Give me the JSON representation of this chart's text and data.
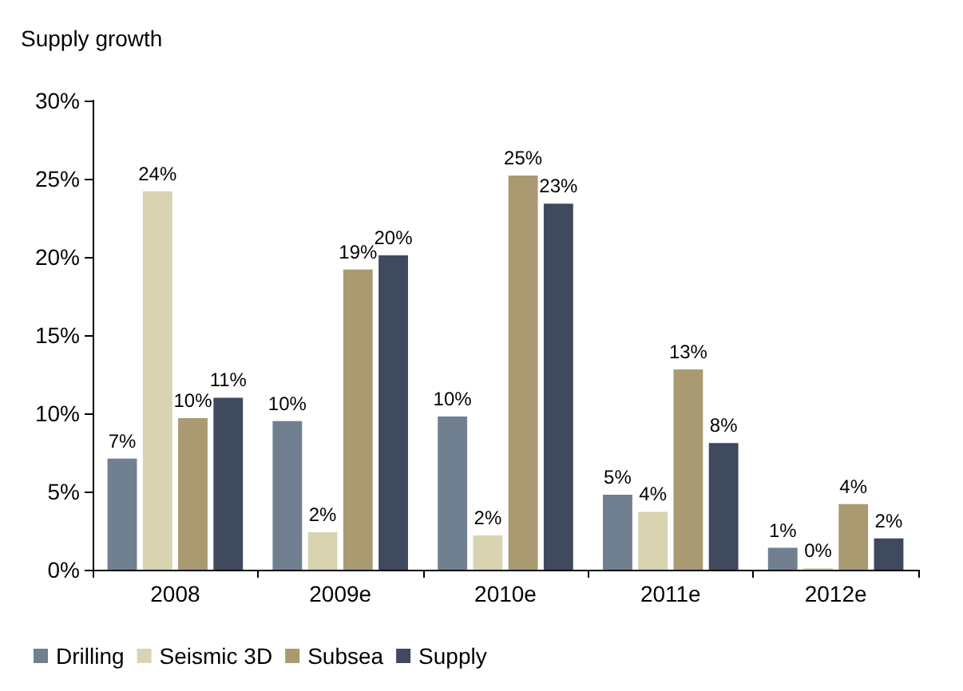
{
  "chart_data": {
    "type": "bar",
    "title": "Supply growth",
    "categories": [
      "2008",
      "2009e",
      "2010e",
      "2011e",
      "2012e"
    ],
    "series": [
      {
        "name": "Drilling",
        "color": "#718090",
        "values": [
          7.1,
          9.5,
          9.8,
          4.8,
          1.4
        ],
        "value_labels": [
          "7%",
          "10%",
          "10%",
          "5%",
          "1%"
        ]
      },
      {
        "name": "Seismic 3D",
        "color": "#d8d3b0",
        "values": [
          24.2,
          2.4,
          2.2,
          3.7,
          0
        ],
        "value_labels": [
          "24%",
          "2%",
          "2%",
          "4%",
          "0%"
        ]
      },
      {
        "name": "Subsea",
        "color": "#a99a72",
        "values": [
          9.7,
          19.2,
          25.2,
          12.8,
          4.2
        ],
        "value_labels": [
          "10%",
          "19%",
          "25%",
          "13%",
          "4%"
        ]
      },
      {
        "name": "Supply",
        "color": "#3f4a5e",
        "values": [
          11.0,
          20.1,
          23.4,
          8.1,
          2.0
        ],
        "value_labels": [
          "11%",
          "20%",
          "23%",
          "8%",
          "2%"
        ]
      }
    ],
    "ylim": [
      0,
      30
    ],
    "yticks": [
      {
        "value": 0,
        "label": "0%"
      },
      {
        "value": 5,
        "label": "5%"
      },
      {
        "value": 10,
        "label": "10%"
      },
      {
        "value": 15,
        "label": "15%"
      },
      {
        "value": 20,
        "label": "20%"
      },
      {
        "value": 25,
        "label": "25%"
      },
      {
        "value": 30,
        "label": "30%"
      }
    ],
    "grid": false,
    "legend": "bottom left"
  }
}
